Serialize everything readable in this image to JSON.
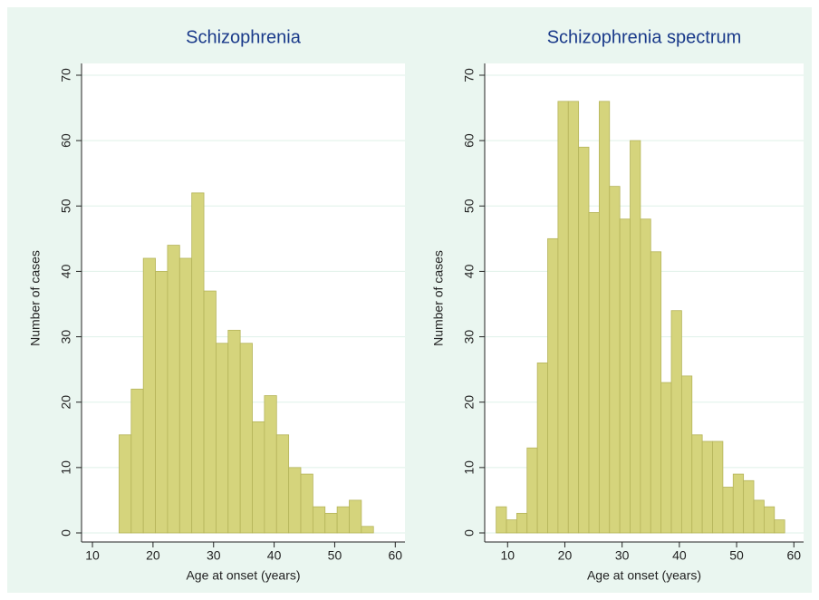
{
  "chart_data": [
    {
      "type": "histogram",
      "title": "Schizophrenia",
      "x_label": "Age at onset (years)",
      "y_label": "Number of cases",
      "bins": [
        14.4,
        16.4,
        18.4,
        20.4,
        22.4,
        24.4,
        26.4,
        28.4,
        30.4,
        32.4,
        34.4,
        36.4,
        38.4,
        40.4,
        42.4,
        44.4,
        46.4,
        48.4,
        50.4,
        52.4,
        54.4,
        56.4
      ],
      "values": [
        15,
        22,
        42,
        40,
        44,
        42,
        52,
        37,
        29,
        31,
        29,
        17,
        21,
        15,
        10,
        9,
        4,
        3,
        4,
        5,
        1
      ],
      "color": "#d5d47c",
      "xlim": [
        8.2,
        61.6
      ],
      "ylim": [
        0,
        71.8
      ],
      "xticks": [
        10,
        20,
        30,
        40,
        50,
        60
      ],
      "yticks": [
        0,
        10,
        20,
        30,
        40,
        50,
        60,
        70
      ],
      "grid": true
    },
    {
      "type": "histogram",
      "title": "Schizophrenia spectrum",
      "x_label": "Age at onset (years)",
      "y_label": "Number of cases",
      "bins": [
        8,
        9.8,
        11.6,
        13.4,
        15.2,
        17,
        18.8,
        20.6,
        22.4,
        24.2,
        26,
        27.8,
        29.6,
        31.4,
        33.2,
        35,
        36.8,
        38.6,
        40.4,
        42.2,
        44,
        45.8,
        47.6,
        49.4,
        51.2,
        53,
        54.8,
        56.6,
        58.4
      ],
      "values": [
        4,
        2,
        3,
        13,
        26,
        45,
        66,
        66,
        59,
        49,
        66,
        53,
        48,
        60,
        48,
        43,
        23,
        34,
        24,
        15,
        14,
        14,
        7,
        9,
        8,
        5,
        4,
        2
      ],
      "color": "#d5d47c",
      "xlim": [
        6.0,
        61.7
      ],
      "ylim": [
        0,
        71.8
      ],
      "xticks": [
        10,
        20,
        30,
        40,
        50,
        60
      ],
      "yticks": [
        0,
        10,
        20,
        30,
        40,
        50,
        60,
        70
      ],
      "grid": true
    }
  ]
}
